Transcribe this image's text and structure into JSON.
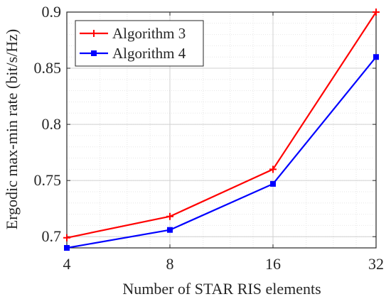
{
  "chart_data": {
    "type": "line",
    "title": "",
    "xlabel": "Number of STAR RIS elements",
    "ylabel": "Ergodic max-min rate (bit/s/Hz)",
    "x_scale": "log2",
    "categories": [
      "4",
      "8",
      "16",
      "32"
    ],
    "x": [
      4,
      8,
      16,
      32
    ],
    "xlim": [
      4,
      32
    ],
    "ylim": [
      0.69,
      0.9
    ],
    "y_ticks": [
      0.7,
      0.75,
      0.8,
      0.85,
      0.9
    ],
    "y_tick_labels": [
      "0.7",
      "0.75",
      "0.8",
      "0.85",
      "0.9"
    ],
    "grid": true,
    "legend_position": "top-left",
    "series": [
      {
        "name": "Algorithm 3",
        "values": [
          0.699,
          0.718,
          0.76,
          0.9
        ],
        "color": "#ff0000",
        "marker": "plus"
      },
      {
        "name": "Algorithm 4",
        "values": [
          0.69,
          0.706,
          0.747,
          0.86
        ],
        "color": "#0000ff",
        "marker": "square"
      }
    ]
  }
}
